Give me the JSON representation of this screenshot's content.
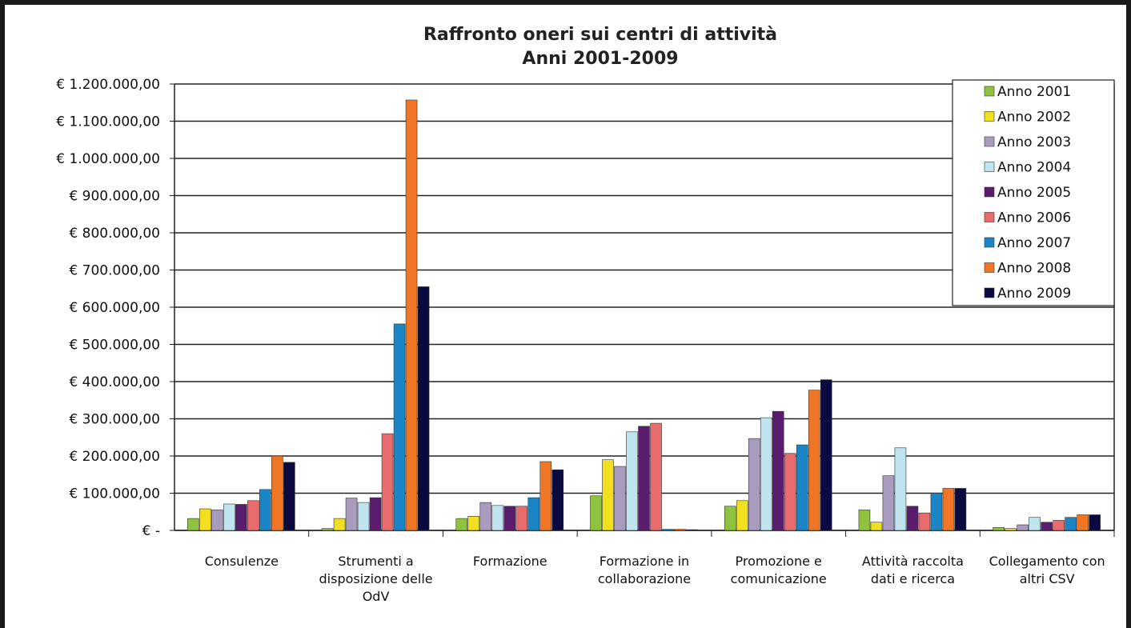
{
  "chart_data": {
    "type": "bar",
    "title": "Raffronto oneri sui centri di attività",
    "subtitle": "Anni 2001-2009",
    "categories": [
      "Consulenze",
      "Strumenti a disposizione delle OdV",
      "Formazione",
      "Formazione in collaborazione",
      "Promozione e comunicazione",
      "Attività raccolta dati e ricerca",
      "Collegamento con altri CSV"
    ],
    "series": [
      {
        "name": "Anno 2001",
        "color": "#8fc23f",
        "values": [
          32000,
          5000,
          32000,
          93000,
          65000,
          55000,
          8000
        ]
      },
      {
        "name": "Anno 2002",
        "color": "#f2e01f",
        "values": [
          58000,
          32000,
          38000,
          190000,
          80000,
          22000,
          5000
        ]
      },
      {
        "name": "Anno 2003",
        "color": "#a99bbd",
        "values": [
          55000,
          87000,
          75000,
          172000,
          247000,
          147000,
          15000
        ]
      },
      {
        "name": "Anno 2004",
        "color": "#bfe3ef",
        "values": [
          71000,
          75000,
          67000,
          265000,
          303000,
          222000,
          35000
        ]
      },
      {
        "name": "Anno 2005",
        "color": "#5a1d6e",
        "values": [
          70000,
          88000,
          65000,
          280000,
          320000,
          65000,
          22000
        ]
      },
      {
        "name": "Anno 2006",
        "color": "#e86c6c",
        "values": [
          80000,
          260000,
          65000,
          288000,
          207000,
          47000,
          27000
        ]
      },
      {
        "name": "Anno 2007",
        "color": "#1a86c8",
        "values": [
          110000,
          555000,
          88000,
          3000,
          230000,
          100000,
          35000
        ]
      },
      {
        "name": "Anno 2008",
        "color": "#f07524",
        "values": [
          200000,
          1157000,
          185000,
          3000,
          377000,
          113000,
          42000
        ]
      },
      {
        "name": "Anno 2009",
        "color": "#0a0a40",
        "values": [
          183000,
          655000,
          163000,
          2000,
          405000,
          113000,
          42000
        ]
      }
    ],
    "ylim": [
      0,
      1200000
    ],
    "yticks": [
      {
        "value": 0,
        "label": "€ -"
      },
      {
        "value": 100000,
        "label": "€ 100.000,00"
      },
      {
        "value": 200000,
        "label": "€ 200.000,00"
      },
      {
        "value": 300000,
        "label": "€ 300.000,00"
      },
      {
        "value": 400000,
        "label": "€ 400.000,00"
      },
      {
        "value": 500000,
        "label": "€ 500.000,00"
      },
      {
        "value": 600000,
        "label": "€ 600.000,00"
      },
      {
        "value": 700000,
        "label": "€ 700.000,00"
      },
      {
        "value": 800000,
        "label": "€ 800.000,00"
      },
      {
        "value": 900000,
        "label": "€ 900.000,00"
      },
      {
        "value": 1000000,
        "label": "€ 1.000.000,00"
      },
      {
        "value": 1100000,
        "label": "€ 1.100.000,00"
      },
      {
        "value": 1200000,
        "label": "€ 1.200.000,00"
      }
    ],
    "grid": true,
    "legend": "top-right"
  }
}
